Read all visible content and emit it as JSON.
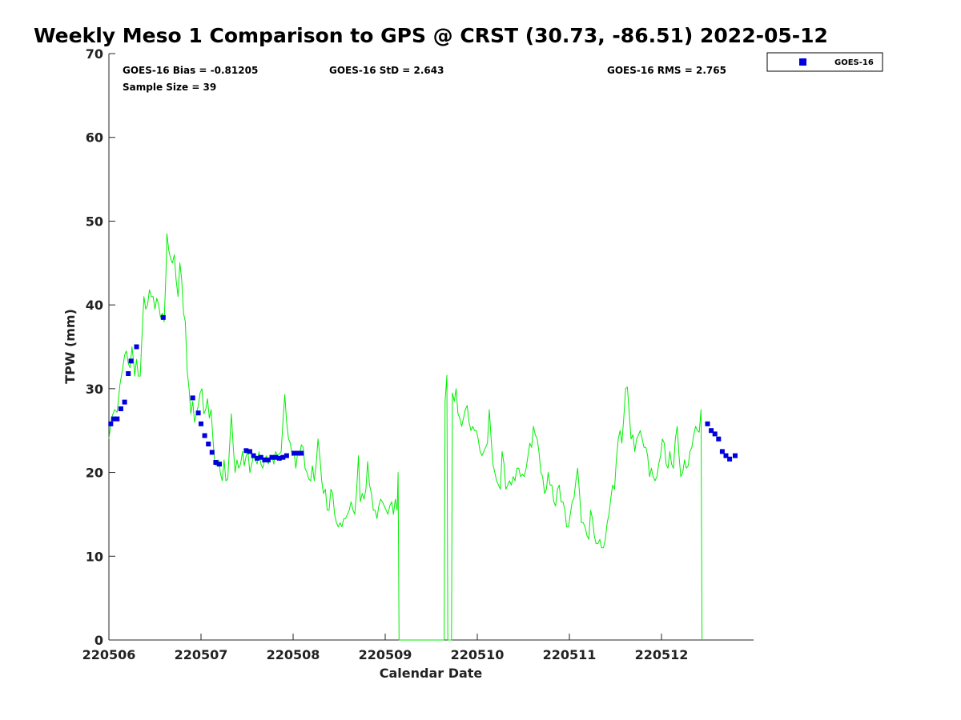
{
  "chart_data": {
    "type": "line",
    "title": "Weekly Meso 1 Comparison to GPS @ CRST (30.73, -86.51) 2022-05-12",
    "xlabel": "Calendar Date",
    "ylabel": "TPW (mm)",
    "xlim": [
      0,
      7
    ],
    "ylim": [
      0,
      70
    ],
    "x_ticks": [
      {
        "x": 0,
        "label": "220506"
      },
      {
        "x": 1,
        "label": "220507"
      },
      {
        "x": 2,
        "label": "220508"
      },
      {
        "x": 3,
        "label": "220509"
      },
      {
        "x": 4,
        "label": "220510"
      },
      {
        "x": 5,
        "label": "220511"
      },
      {
        "x": 6,
        "label": "220512"
      }
    ],
    "y_ticks": [
      0,
      10,
      20,
      30,
      40,
      50,
      60,
      70
    ],
    "stats": {
      "bias": "GOES-16 Bias = -0.81205",
      "std": "GOES-16 StD = 2.643",
      "rms": "GOES-16 RMS = 2.765",
      "sample": "Sample Size = 39"
    },
    "legend": {
      "position": "top-right",
      "entries": [
        {
          "label": "GOES-16",
          "color": "#0000dd",
          "marker": "square"
        }
      ]
    },
    "colors": {
      "gps_line": "#00ee00",
      "goes_marker": "#0000dd"
    },
    "gps_series": {
      "color": "#00ee00",
      "points": [
        [
          0.0,
          24.0
        ],
        [
          0.03,
          26.5
        ],
        [
          0.06,
          27.5
        ],
        [
          0.09,
          27.2
        ],
        [
          0.12,
          30.5
        ],
        [
          0.15,
          32.5
        ],
        [
          0.17,
          34.0
        ],
        [
          0.19,
          34.5
        ],
        [
          0.21,
          33.0
        ],
        [
          0.23,
          32.5
        ],
        [
          0.25,
          35.0
        ],
        [
          0.27,
          33.0
        ],
        [
          0.28,
          31.5
        ],
        [
          0.3,
          33.5
        ],
        [
          0.32,
          31.5
        ],
        [
          0.34,
          31.5
        ],
        [
          0.36,
          36.5
        ],
        [
          0.38,
          41.0
        ],
        [
          0.4,
          39.5
        ],
        [
          0.42,
          40.0
        ],
        [
          0.44,
          41.8
        ],
        [
          0.46,
          41.0
        ],
        [
          0.48,
          41.0
        ],
        [
          0.5,
          39.5
        ],
        [
          0.52,
          40.8
        ],
        [
          0.54,
          40.0
        ],
        [
          0.56,
          38.5
        ],
        [
          0.58,
          39.0
        ],
        [
          0.6,
          38.0
        ],
        [
          0.62,
          44.0
        ],
        [
          0.63,
          48.5
        ],
        [
          0.65,
          46.5
        ],
        [
          0.67,
          45.5
        ],
        [
          0.69,
          45.0
        ],
        [
          0.71,
          46.0
        ],
        [
          0.73,
          43.0
        ],
        [
          0.75,
          41.0
        ],
        [
          0.77,
          45.0
        ],
        [
          0.79,
          43.0
        ],
        [
          0.81,
          39.0
        ],
        [
          0.83,
          38.0
        ],
        [
          0.85,
          32.0
        ],
        [
          0.87,
          30.0
        ],
        [
          0.89,
          27.0
        ],
        [
          0.91,
          28.5
        ],
        [
          0.93,
          26.0
        ],
        [
          0.95,
          27.0
        ],
        [
          0.97,
          28.0
        ],
        [
          0.99,
          29.5
        ],
        [
          1.01,
          30.0
        ],
        [
          1.03,
          27.0
        ],
        [
          1.05,
          27.5
        ],
        [
          1.07,
          28.8
        ],
        [
          1.09,
          26.5
        ],
        [
          1.11,
          27.5
        ],
        [
          1.13,
          24.0
        ],
        [
          1.15,
          21.0
        ],
        [
          1.17,
          20.8
        ],
        [
          1.19,
          21.5
        ],
        [
          1.21,
          20.0
        ],
        [
          1.23,
          19.0
        ],
        [
          1.25,
          21.5
        ],
        [
          1.27,
          19.0
        ],
        [
          1.29,
          19.2
        ],
        [
          1.31,
          23.0
        ],
        [
          1.33,
          27.0
        ],
        [
          1.35,
          23.0
        ],
        [
          1.37,
          20.0
        ],
        [
          1.39,
          21.5
        ],
        [
          1.41,
          20.5
        ],
        [
          1.43,
          21.0
        ],
        [
          1.45,
          22.5
        ],
        [
          1.47,
          20.8
        ],
        [
          1.49,
          22.0
        ],
        [
          1.51,
          22.5
        ],
        [
          1.53,
          20.0
        ],
        [
          1.55,
          21.0
        ],
        [
          1.57,
          22.0
        ],
        [
          1.59,
          21.5
        ],
        [
          1.61,
          21.0
        ],
        [
          1.63,
          22.5
        ],
        [
          1.65,
          21.0
        ],
        [
          1.67,
          20.5
        ],
        [
          1.69,
          21.5
        ],
        [
          1.71,
          22.0
        ],
        [
          1.73,
          21.0
        ],
        [
          1.75,
          21.5
        ],
        [
          1.77,
          22.0
        ],
        [
          1.79,
          21.0
        ],
        [
          1.81,
          22.5
        ],
        [
          1.83,
          22.0
        ],
        [
          1.85,
          22.2
        ],
        [
          1.87,
          22.5
        ],
        [
          1.89,
          26.0
        ],
        [
          1.91,
          29.3
        ],
        [
          1.93,
          26.0
        ],
        [
          1.95,
          24.0
        ],
        [
          1.97,
          23.5
        ],
        [
          1.99,
          22.0
        ],
        [
          2.01,
          22.5
        ],
        [
          2.03,
          20.5
        ],
        [
          2.05,
          22.5
        ],
        [
          2.07,
          22.0
        ],
        [
          2.09,
          23.3
        ],
        [
          2.11,
          23.0
        ],
        [
          2.13,
          20.5
        ],
        [
          2.15,
          20.0
        ],
        [
          2.17,
          19.2
        ],
        [
          2.19,
          19.0
        ],
        [
          2.21,
          20.8
        ],
        [
          2.23,
          19.0
        ],
        [
          2.25,
          21.0
        ],
        [
          2.27,
          24.0
        ],
        [
          2.29,
          22.0
        ],
        [
          2.31,
          19.0
        ],
        [
          2.33,
          17.5
        ],
        [
          2.35,
          18.0
        ],
        [
          2.37,
          15.5
        ],
        [
          2.39,
          15.5
        ],
        [
          2.41,
          18.0
        ],
        [
          2.43,
          17.5
        ],
        [
          2.45,
          15.0
        ],
        [
          2.47,
          14.0
        ],
        [
          2.49,
          13.5
        ],
        [
          2.51,
          14.0
        ],
        [
          2.53,
          13.5
        ],
        [
          2.55,
          14.5
        ],
        [
          2.57,
          14.5
        ],
        [
          2.59,
          15.0
        ],
        [
          2.61,
          15.5
        ],
        [
          2.63,
          16.5
        ],
        [
          2.65,
          15.5
        ],
        [
          2.67,
          15.0
        ],
        [
          2.69,
          18.0
        ],
        [
          2.71,
          22.0
        ],
        [
          2.73,
          16.5
        ],
        [
          2.75,
          17.5
        ],
        [
          2.77,
          16.8
        ],
        [
          2.79,
          18.0
        ],
        [
          2.81,
          21.3
        ],
        [
          2.83,
          18.5
        ],
        [
          2.85,
          17.5
        ],
        [
          2.87,
          15.5
        ],
        [
          2.89,
          15.5
        ],
        [
          2.91,
          14.5
        ],
        [
          2.93,
          16.0
        ],
        [
          2.95,
          16.8
        ],
        [
          2.97,
          16.5
        ],
        [
          2.99,
          16.0
        ],
        [
          3.01,
          15.5
        ],
        [
          3.03,
          15.0
        ],
        [
          3.05,
          16.0
        ],
        [
          3.07,
          16.5
        ],
        [
          3.09,
          15.0
        ],
        [
          3.11,
          16.8
        ],
        [
          3.13,
          15.5
        ],
        [
          3.14,
          20.0
        ],
        [
          3.15,
          0.0
        ],
        [
          3.64,
          0.0
        ],
        [
          3.65,
          28.5
        ],
        [
          3.67,
          31.6
        ],
        [
          3.68,
          0.0
        ],
        [
          3.72,
          0.0
        ],
        [
          3.73,
          29.5
        ],
        [
          3.75,
          28.5
        ],
        [
          3.77,
          30.0
        ],
        [
          3.79,
          27.0
        ],
        [
          3.81,
          26.5
        ],
        [
          3.83,
          25.5
        ],
        [
          3.85,
          26.5
        ],
        [
          3.87,
          27.5
        ],
        [
          3.89,
          28.0
        ],
        [
          3.91,
          26.0
        ],
        [
          3.93,
          25.0
        ],
        [
          3.95,
          25.5
        ],
        [
          3.97,
          25.0
        ],
        [
          3.99,
          25.0
        ],
        [
          4.01,
          24.0
        ],
        [
          4.03,
          22.5
        ],
        [
          4.05,
          22.0
        ],
        [
          4.07,
          22.5
        ],
        [
          4.09,
          23.0
        ],
        [
          4.11,
          23.5
        ],
        [
          4.13,
          27.5
        ],
        [
          4.15,
          24.0
        ],
        [
          4.17,
          21.0
        ],
        [
          4.19,
          20.0
        ],
        [
          4.21,
          19.0
        ],
        [
          4.23,
          18.5
        ],
        [
          4.25,
          18.0
        ],
        [
          4.27,
          22.5
        ],
        [
          4.29,
          21.0
        ],
        [
          4.31,
          18.0
        ],
        [
          4.33,
          18.5
        ],
        [
          4.35,
          19.0
        ],
        [
          4.37,
          18.5
        ],
        [
          4.39,
          19.5
        ],
        [
          4.41,
          19.0
        ],
        [
          4.43,
          20.5
        ],
        [
          4.45,
          20.5
        ],
        [
          4.47,
          19.5
        ],
        [
          4.49,
          19.8
        ],
        [
          4.51,
          19.5
        ],
        [
          4.53,
          20.5
        ],
        [
          4.55,
          22.0
        ],
        [
          4.57,
          23.5
        ],
        [
          4.59,
          23.0
        ],
        [
          4.61,
          25.5
        ],
        [
          4.63,
          24.5
        ],
        [
          4.65,
          24.0
        ],
        [
          4.67,
          22.5
        ],
        [
          4.69,
          20.0
        ],
        [
          4.71,
          19.5
        ],
        [
          4.73,
          17.5
        ],
        [
          4.75,
          18.0
        ],
        [
          4.77,
          20.0
        ],
        [
          4.79,
          18.5
        ],
        [
          4.81,
          18.5
        ],
        [
          4.83,
          16.5
        ],
        [
          4.85,
          16.0
        ],
        [
          4.87,
          18.0
        ],
        [
          4.89,
          18.5
        ],
        [
          4.91,
          16.5
        ],
        [
          4.93,
          16.5
        ],
        [
          4.95,
          15.5
        ],
        [
          4.97,
          13.5
        ],
        [
          4.99,
          13.5
        ],
        [
          5.01,
          15.0
        ],
        [
          5.03,
          16.5
        ],
        [
          5.05,
          17.0
        ],
        [
          5.07,
          19.0
        ],
        [
          5.09,
          20.5
        ],
        [
          5.11,
          17.5
        ],
        [
          5.13,
          14.0
        ],
        [
          5.15,
          14.0
        ],
        [
          5.17,
          13.5
        ],
        [
          5.19,
          12.5
        ],
        [
          5.21,
          12.0
        ],
        [
          5.23,
          15.5
        ],
        [
          5.25,
          14.5
        ],
        [
          5.27,
          12.5
        ],
        [
          5.29,
          11.5
        ],
        [
          5.31,
          11.5
        ],
        [
          5.33,
          12.0
        ],
        [
          5.35,
          11.0
        ],
        [
          5.37,
          11.0
        ],
        [
          5.39,
          12.0
        ],
        [
          5.41,
          14.0
        ],
        [
          5.43,
          15.0
        ],
        [
          5.45,
          17.0
        ],
        [
          5.47,
          18.5
        ],
        [
          5.49,
          18.0
        ],
        [
          5.51,
          21.5
        ],
        [
          5.53,
          24.0
        ],
        [
          5.55,
          25.0
        ],
        [
          5.57,
          23.5
        ],
        [
          5.59,
          26.5
        ],
        [
          5.61,
          30.0
        ],
        [
          5.63,
          30.2
        ],
        [
          5.65,
          27.0
        ],
        [
          5.67,
          24.0
        ],
        [
          5.69,
          24.5
        ],
        [
          5.71,
          22.5
        ],
        [
          5.73,
          24.0
        ],
        [
          5.75,
          24.5
        ],
        [
          5.77,
          25.0
        ],
        [
          5.79,
          24.0
        ],
        [
          5.81,
          23.0
        ],
        [
          5.83,
          23.0
        ],
        [
          5.85,
          22.0
        ],
        [
          5.87,
          19.5
        ],
        [
          5.89,
          20.5
        ],
        [
          5.91,
          19.5
        ],
        [
          5.93,
          19.0
        ],
        [
          5.95,
          19.5
        ],
        [
          5.97,
          21.0
        ],
        [
          5.99,
          22.0
        ],
        [
          6.01,
          24.0
        ],
        [
          6.03,
          23.5
        ],
        [
          6.05,
          21.0
        ],
        [
          6.07,
          20.5
        ],
        [
          6.09,
          22.5
        ],
        [
          6.11,
          21.0
        ],
        [
          6.13,
          20.5
        ],
        [
          6.15,
          24.0
        ],
        [
          6.17,
          25.5
        ],
        [
          6.19,
          22.0
        ],
        [
          6.21,
          19.5
        ],
        [
          6.23,
          20.0
        ],
        [
          6.25,
          21.5
        ],
        [
          6.27,
          20.5
        ],
        [
          6.29,
          20.8
        ],
        [
          6.31,
          22.5
        ],
        [
          6.33,
          23.0
        ],
        [
          6.35,
          24.5
        ],
        [
          6.37,
          25.5
        ],
        [
          6.39,
          25.0
        ],
        [
          6.41,
          24.8
        ],
        [
          6.43,
          27.5
        ],
        [
          6.44,
          0.0
        ]
      ]
    },
    "series": [
      {
        "name": "GOES-16",
        "color": "#0000dd",
        "marker": "square",
        "points": [
          [
            0.02,
            25.8
          ],
          [
            0.05,
            26.4
          ],
          [
            0.09,
            26.4
          ],
          [
            0.13,
            27.6
          ],
          [
            0.17,
            28.4
          ],
          [
            0.21,
            31.8
          ],
          [
            0.24,
            33.3
          ],
          [
            0.3,
            35.0
          ],
          [
            0.59,
            38.5
          ],
          [
            0.91,
            28.9
          ],
          [
            0.97,
            27.1
          ],
          [
            1.0,
            25.8
          ],
          [
            1.04,
            24.4
          ],
          [
            1.08,
            23.4
          ],
          [
            1.12,
            22.4
          ],
          [
            1.16,
            21.2
          ],
          [
            1.2,
            21.0
          ],
          [
            1.49,
            22.6
          ],
          [
            1.53,
            22.5
          ],
          [
            1.57,
            22.0
          ],
          [
            1.61,
            21.7
          ],
          [
            1.65,
            21.8
          ],
          [
            1.69,
            21.5
          ],
          [
            1.73,
            21.5
          ],
          [
            1.77,
            21.8
          ],
          [
            1.81,
            21.8
          ],
          [
            1.85,
            21.7
          ],
          [
            1.89,
            21.8
          ],
          [
            1.93,
            22.0
          ],
          [
            2.01,
            22.3
          ],
          [
            2.05,
            22.3
          ],
          [
            2.09,
            22.3
          ],
          [
            6.5,
            25.8
          ],
          [
            6.54,
            25.0
          ],
          [
            6.58,
            24.6
          ],
          [
            6.62,
            24.0
          ],
          [
            6.66,
            22.5
          ],
          [
            6.7,
            22.0
          ],
          [
            6.74,
            21.6
          ],
          [
            6.8,
            22.0
          ]
        ]
      }
    ]
  }
}
